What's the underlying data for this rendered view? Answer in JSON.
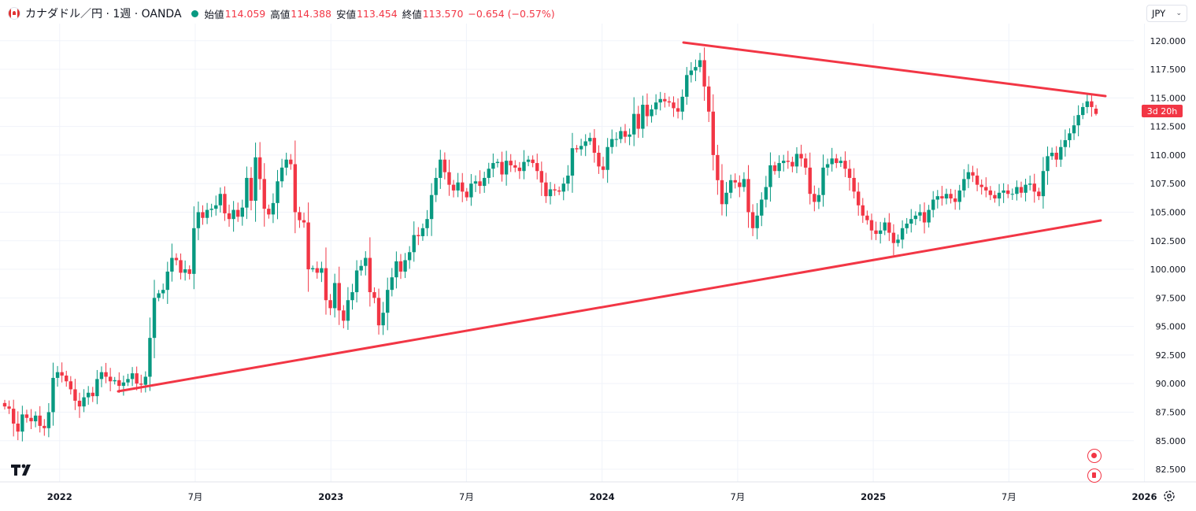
{
  "legend": {
    "symbol": "カナダドル／円 · 1週 · OANDA",
    "open_label": "始値",
    "open": "114.059",
    "high_label": "高値",
    "high": "114.388",
    "low_label": "安値",
    "low": "113.454",
    "close_label": "終値",
    "close": "113.570",
    "change": "−0.654 (−0.57%)"
  },
  "currency": "JPY",
  "countdown": "3d 20h",
  "colors": {
    "up": "#089981",
    "down": "#f23645",
    "trendline": "#f23645",
    "grid": "#f0f3fa"
  },
  "chart_data": {
    "type": "candlestick",
    "title": "カナダドル／円 · 1週 · OANDA",
    "ylim": [
      81.4,
      121.5
    ],
    "y_ticks": [
      "82.500",
      "85.000",
      "87.500",
      "90.000",
      "92.500",
      "95.000",
      "97.500",
      "100.000",
      "102.500",
      "105.000",
      "107.500",
      "110.000",
      "112.500",
      "115.000",
      "117.500",
      "120.000"
    ],
    "x_labels": [
      {
        "label": "2022",
        "date": 2022.0,
        "bold": true
      },
      {
        "label": "7月",
        "date": 2022.5,
        "bold": false
      },
      {
        "label": "2023",
        "date": 2023.0,
        "bold": true
      },
      {
        "label": "7月",
        "date": 2023.5,
        "bold": false
      },
      {
        "label": "2024",
        "date": 2024.0,
        "bold": true
      },
      {
        "label": "7月",
        "date": 2024.5,
        "bold": false
      },
      {
        "label": "2025",
        "date": 2025.0,
        "bold": true
      },
      {
        "label": "7月",
        "date": 2025.5,
        "bold": false
      },
      {
        "label": "2026",
        "date": 2026.0,
        "bold": true
      }
    ],
    "x_range": [
      2021.78,
      2026.19
    ],
    "last_price": 113.57,
    "closes": [
      88.0,
      87.8,
      86.5,
      85.8,
      87.3,
      87.0,
      86.7,
      87.2,
      86.3,
      86.1,
      87.5,
      90.5,
      91.0,
      90.7,
      90.2,
      89.5,
      88.5,
      88.0,
      88.8,
      89.2,
      88.9,
      90.4,
      91.0,
      90.6,
      90.2,
      90.3,
      89.8,
      90.1,
      90.4,
      90.9,
      90.0,
      89.9,
      90.6,
      94.0,
      97.5,
      97.9,
      98.2,
      99.8,
      101.0,
      100.8,
      99.7,
      100.0,
      99.6,
      103.6,
      105.0,
      104.5,
      105.2,
      105.3,
      105.6,
      106.6,
      104.9,
      104.4,
      105.2,
      104.6,
      105.4,
      108.0,
      106.0,
      109.8,
      107.9,
      105.3,
      104.8,
      105.8,
      107.7,
      108.9,
      109.6,
      109.2,
      105.0,
      104.3,
      104.1,
      100.0,
      100.1,
      99.7,
      100.1,
      97.3,
      96.6,
      98.8,
      96.4,
      95.5,
      97.3,
      98.0,
      99.9,
      100.3,
      101.0,
      98.0,
      97.5,
      95.1,
      96.2,
      98.2,
      99.3,
      100.7,
      99.8,
      100.8,
      101.5,
      103.0,
      102.9,
      103.6,
      104.4,
      106.5,
      108.0,
      109.6,
      108.5,
      107.4,
      106.9,
      107.6,
      106.8,
      106.3,
      107.5,
      107.7,
      107.3,
      108.0,
      108.8,
      109.3,
      109.4,
      108.3,
      109.5,
      109.1,
      108.9,
      108.6,
      109.4,
      109.6,
      109.3,
      108.6,
      107.6,
      106.4,
      107.0,
      106.9,
      106.8,
      107.5,
      108.2,
      110.6,
      110.5,
      110.8,
      111.2,
      111.5,
      110.2,
      109.0,
      108.7,
      110.7,
      111.4,
      111.4,
      112.1,
      111.6,
      111.8,
      113.6,
      112.3,
      114.4,
      113.4,
      114.0,
      114.6,
      114.9,
      114.7,
      114.6,
      114.1,
      113.8,
      115.1,
      117.0,
      117.4,
      117.7,
      118.3,
      116.0,
      113.8,
      110.0,
      107.8,
      105.7,
      106.7,
      107.8,
      107.6,
      107.2,
      107.9,
      105.0,
      103.6,
      104.7,
      106.1,
      107.2,
      109.1,
      108.6,
      109.3,
      109.5,
      109.4,
      109.0,
      110.1,
      109.7,
      108.9,
      106.6,
      105.9,
      106.5,
      108.9,
      109.2,
      109.7,
      109.3,
      109.5,
      108.8,
      108.0,
      106.8,
      105.6,
      104.7,
      104.3,
      103.4,
      103.1,
      103.4,
      104.1,
      103.2,
      102.3,
      102.6,
      103.6,
      104.0,
      104.4,
      104.7,
      105.0,
      104.1,
      105.2,
      106.1,
      106.4,
      106.2,
      106.6,
      106.2,
      105.9,
      106.9,
      107.9,
      108.5,
      108.2,
      107.4,
      107.2,
      106.9,
      106.5,
      106.2,
      106.7,
      106.9,
      106.6,
      106.6,
      107.2,
      106.7,
      107.4,
      107.5,
      106.8,
      106.4,
      108.6,
      109.9,
      110.2,
      109.6,
      110.7,
      111.3,
      111.9,
      112.6,
      113.5,
      114.2,
      114.7,
      114.2,
      113.6
    ]
  }
}
